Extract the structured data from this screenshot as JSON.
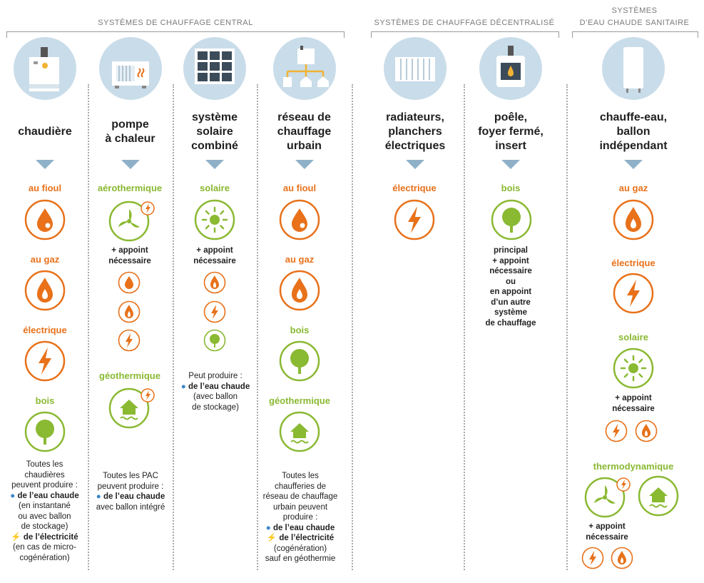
{
  "groups": {
    "central": "SYSTÈMES DE CHAUFFAGE CENTRAL",
    "decentral": "SYSTÈMES DE CHAUFFAGE DÉCENTRALISÉ",
    "ecs_line1": "SYSTÈMES",
    "ecs_line2": "D’EAU CHAUDE SANITAIRE"
  },
  "columns": {
    "chaudiere": {
      "name": "chaudière",
      "e1": "au fioul",
      "e2": "au gaz",
      "e3": "électrique",
      "e4": "bois"
    },
    "pac": {
      "name": "pompe\nà chaleur",
      "e1": "aérothermique",
      "appoint": "+ appoint\nnécessaire",
      "e2": "géothermique"
    },
    "solaire": {
      "name": "système\nsolaire\ncombiné",
      "e1": "solaire",
      "appoint": "+ appoint\nnécessaire"
    },
    "reseau": {
      "name": "réseau de\nchauffage\nurbain",
      "e1": "au fioul",
      "e2": "au gaz",
      "e3": "bois",
      "e4": "géothermique"
    },
    "radiateurs": {
      "name": "radiateurs,\nplanchers\nélectriques",
      "e1": "électrique"
    },
    "poele": {
      "name": "poêle,\nfoyer fermé,\ninsert",
      "e1": "bois",
      "detail": "principal\n+ appoint\nnécessaire\nou\nen appoint\nd’un autre\nsystème\nde chauffage"
    },
    "chauffeeau": {
      "name": "chauffe-eau,\nballon\nindépendant",
      "e1": "au gaz",
      "e2": "électrique",
      "e3": "solaire",
      "appoint": "+ appoint\nnécessaire",
      "e4": "thermodynamique",
      "appoint2": "+ appoint\nnécessaire"
    }
  },
  "notes": {
    "chaudiere": {
      "l1": "Toutes les",
      "l2": "chaudières",
      "l3": "peuvent produire :",
      "b1": "de l’eau chaude",
      "l5": "(en instantané",
      "l6": "ou avec ballon",
      "l7": "de stockage)",
      "b2": "de l’électricité",
      "l9": "(en cas de micro-",
      "l10": "cogénération)"
    },
    "pac": {
      "l1": "Toutes les PAC",
      "l2": "peuvent produire :",
      "b1": "de l’eau chaude",
      "l4": "avec ballon intégré"
    },
    "solaire": {
      "l1": "Peut produire :",
      "b1": "de l’eau chaude",
      "l3": "(avec ballon",
      "l4": "de stockage)"
    },
    "reseau": {
      "l1": "Toutes les",
      "l2": "chaufferies de",
      "l3": "réseau de chauffage",
      "l4": "urbain peuvent",
      "l5": "produire :",
      "b1": "de l’eau chaude",
      "b2": "de l’électricité",
      "l8": "(cogénération)",
      "l9": "sauf en géothermie"
    }
  },
  "colors": {
    "orange": "#e8711a",
    "green": "#8ab932",
    "disc": "#c9dce9",
    "arrow": "#8fb1c8",
    "water": "#3b86c8"
  }
}
